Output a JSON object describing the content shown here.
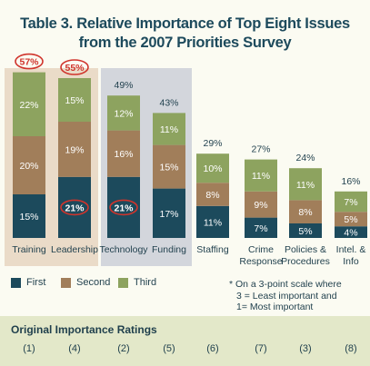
{
  "title_line1": "Table 3. Relative Importance of Top Eight Issues",
  "title_line2": "from the 2007 Priorities Survey",
  "colors": {
    "first": "#1c4a5c",
    "second": "#a17e5a",
    "third": "#8da35f",
    "panel_training_leadership": "#eadbc8",
    "panel_technology_funding": "#d3d6dc",
    "circle": "#d0342c",
    "text": "#1f3f4c"
  },
  "chart_data": {
    "type": "bar",
    "stacked": true,
    "categories": [
      [
        "Training"
      ],
      [
        "Leadership"
      ],
      [
        "Technology"
      ],
      [
        "Funding"
      ],
      [
        "Staffing"
      ],
      [
        "Crime",
        "Response"
      ],
      [
        "Policies &",
        "Procedures"
      ],
      [
        "Intel. &",
        "Info"
      ]
    ],
    "series": [
      {
        "name": "First",
        "values": [
          15,
          21,
          21,
          17,
          11,
          7,
          5,
          4
        ]
      },
      {
        "name": "Second",
        "values": [
          20,
          19,
          16,
          15,
          8,
          9,
          8,
          5
        ]
      },
      {
        "name": "Third",
        "values": [
          22,
          15,
          12,
          11,
          10,
          11,
          11,
          7
        ]
      }
    ],
    "totals": [
      57,
      55,
      49,
      43,
      29,
      27,
      24,
      16
    ],
    "circled_totals": [
      0,
      1
    ],
    "circled_first_values": [
      1,
      2
    ],
    "highlight_groups": [
      [
        0,
        1
      ],
      [
        2,
        3
      ]
    ],
    "ylim": [
      0,
      60
    ],
    "legend_position": "bottom-left"
  },
  "legend": {
    "first": "First",
    "second": "Second",
    "third": "Third"
  },
  "footnote": {
    "line1": "* On a 3-point scale where",
    "line2": "3 = Least important and",
    "line3": "1= Most important"
  },
  "ratings": {
    "title": "Original Importance Ratings",
    "values": [
      "(1)",
      "(4)",
      "(2)",
      "(5)",
      "(6)",
      "(7)",
      "(3)",
      "(8)"
    ]
  }
}
